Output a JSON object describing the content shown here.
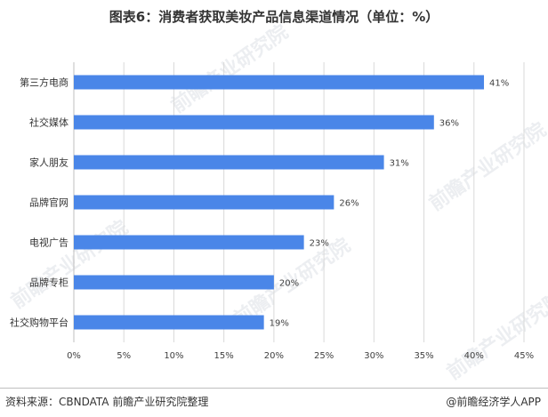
{
  "title": "图表6：消费者获取美妆产品信息渠道情况（单位：%）",
  "watermark": "前瞻产业研究院",
  "footer": {
    "source": "资料来源：CBNDATA 前瞻产业研究院整理",
    "brand": "@前瞻经济学人APP"
  },
  "colors": {
    "bar": "#4a86e8",
    "grid": "#d9d9d9",
    "axis": "#bfbfbf"
  },
  "chart_data": {
    "type": "bar",
    "orientation": "horizontal",
    "categories": [
      "第三方电商",
      "社交媒体",
      "家人朋友",
      "品牌官网",
      "电视广告",
      "品牌专柜",
      "社交购物平台"
    ],
    "values": [
      41,
      36,
      31,
      26,
      23,
      20,
      19
    ],
    "value_labels": [
      "41%",
      "36%",
      "31%",
      "26%",
      "23%",
      "20%",
      "19%"
    ],
    "xlim": [
      0,
      45
    ],
    "xticks": [
      0,
      5,
      10,
      15,
      20,
      25,
      30,
      35,
      40,
      45
    ],
    "xtick_labels": [
      "0%",
      "5%",
      "10%",
      "15%",
      "20%",
      "25%",
      "30%",
      "35%",
      "40%",
      "45%"
    ],
    "grid": "vertical",
    "legend": "none"
  }
}
